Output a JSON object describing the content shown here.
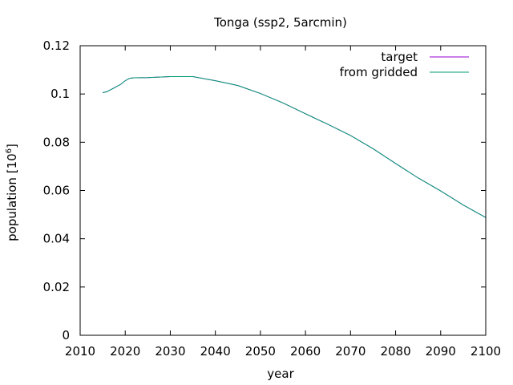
{
  "chart_data": {
    "type": "line",
    "title": "Tonga (ssp2, 5arcmin)",
    "xlabel": "year",
    "ylabel": "population [10",
    "ylabel_sup": "6",
    "ylabel_end": "]",
    "xlim": [
      2010,
      2100
    ],
    "ylim": [
      0,
      0.12
    ],
    "xticks": [
      2010,
      2020,
      2030,
      2040,
      2050,
      2060,
      2070,
      2080,
      2090,
      2100
    ],
    "yticks": [
      0,
      0.02,
      0.04,
      0.06,
      0.08,
      0.1,
      0.12
    ],
    "ytick_labels": [
      "0",
      "0.02",
      "0.04",
      "0.06",
      "0.08",
      "0.1",
      "0.12"
    ],
    "legend_position": "top-right",
    "series": [
      {
        "name": "target",
        "color": "#9400d3",
        "x": [
          2015,
          2016,
          2017,
          2018,
          2019,
          2020,
          2021,
          2022,
          2025,
          2030,
          2035,
          2040,
          2045,
          2050,
          2055,
          2060,
          2065,
          2070,
          2075,
          2080,
          2085,
          2090,
          2095,
          2100
        ],
        "y": [
          0.1005,
          0.101,
          0.102,
          0.103,
          0.104,
          0.1055,
          0.1065,
          0.1067,
          0.1068,
          0.1072,
          0.1072,
          0.1055,
          0.1035,
          0.1002,
          0.0963,
          0.0918,
          0.0874,
          0.0828,
          0.0773,
          0.0712,
          0.0652,
          0.0598,
          0.054,
          0.0488
        ]
      },
      {
        "name": "from gridded",
        "color": "#009e73",
        "x": [
          2015,
          2016,
          2017,
          2018,
          2019,
          2020,
          2021,
          2022,
          2025,
          2030,
          2035,
          2040,
          2045,
          2050,
          2055,
          2060,
          2065,
          2070,
          2075,
          2080,
          2085,
          2090,
          2095,
          2100
        ],
        "y": [
          0.1005,
          0.101,
          0.102,
          0.103,
          0.104,
          0.1055,
          0.1065,
          0.1067,
          0.1068,
          0.1072,
          0.1072,
          0.1055,
          0.1035,
          0.1002,
          0.0963,
          0.0918,
          0.0874,
          0.0828,
          0.0773,
          0.0712,
          0.0652,
          0.0598,
          0.054,
          0.0488
        ]
      }
    ]
  }
}
